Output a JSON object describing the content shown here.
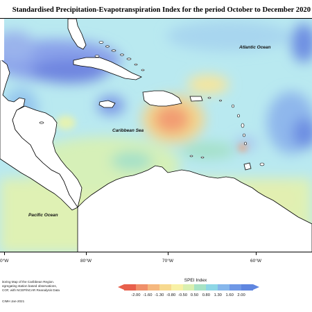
{
  "title": "Standardised Precipitation-Evapotranspiration Index for the period October to December 2020",
  "map_labels": {
    "atlantic": "Atlantic Ocean",
    "caribbean": "Caribbean Sea",
    "pacific": "Pacific Ocean"
  },
  "longitude_ticks": [
    "0°W",
    "80°W",
    "70°W",
    "60°W"
  ],
  "credits": [
    "itoring Map of the Caribbean Region.",
    "egregating station based observations,",
    "COF, with NCEP/NCAR Reanalysis Data"
  ],
  "copyright": "CIMH Jan-2021",
  "legend": {
    "title": "SPEI Index",
    "labels": [
      "-2.00",
      "-1.60",
      "-1.30",
      "-0.80",
      "-0.50",
      "0.50",
      "0.80",
      "1.30",
      "1.60",
      "2.00"
    ],
    "colors": [
      "#e8604c",
      "#f0906a",
      "#f5b87f",
      "#f7d98f",
      "#f8f1a6",
      "#d9f0b0",
      "#a7e3c5",
      "#8ed7e6",
      "#86b7ec",
      "#6f98e6",
      "#5f86e0"
    ]
  },
  "colors": {
    "sea_base": "#b8eaf2",
    "wet": "#7e9ae8",
    "dry": "#f0a77a",
    "land": "#ffffff",
    "coast": "#000000"
  }
}
